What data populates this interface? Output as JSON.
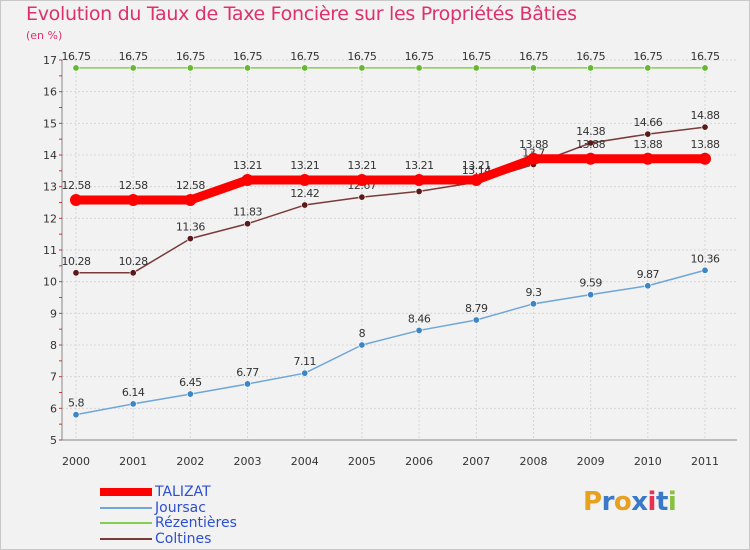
{
  "chart_data": {
    "type": "line",
    "title": "Evolution du Taux de Taxe Foncière sur les Propriétés Bâties",
    "unit_label": "(en %)",
    "x": [
      "2000",
      "2001",
      "2002",
      "2003",
      "2004",
      "2005",
      "2006",
      "2007",
      "2008",
      "2009",
      "2010",
      "2011"
    ],
    "ylim": [
      5,
      17
    ],
    "y_ticks": [
      5,
      6,
      7,
      8,
      9,
      10,
      11,
      12,
      13,
      14,
      15,
      16,
      17
    ],
    "grid": true,
    "legend_position": "bottom-left",
    "series": [
      {
        "name": "Rézentières",
        "color": "#88cc55",
        "marker": "#66b833",
        "values": [
          16.75,
          16.75,
          16.75,
          16.75,
          16.75,
          16.75,
          16.75,
          16.75,
          16.75,
          16.75,
          16.75,
          16.75
        ],
        "labels": [
          "16.75",
          "16.75",
          "16.75",
          "16.75",
          "16.75",
          "16.75",
          "16.75",
          "16.75",
          "16.75",
          "16.75",
          "16.75",
          "16.75"
        ]
      },
      {
        "name": "Joursac",
        "color": "#6ea6d8",
        "marker": "#3d86c6",
        "values": [
          5.8,
          6.14,
          6.45,
          6.77,
          7.11,
          8,
          8.46,
          8.79,
          9.3,
          9.59,
          9.87,
          10.36
        ],
        "labels": [
          "5.8",
          "6.14",
          "6.45",
          "6.77",
          "7.11",
          "8",
          "8.46",
          "8.79",
          "9.3",
          "9.59",
          "9.87",
          "10.36"
        ]
      },
      {
        "name": "Coltines",
        "color": "#7a3a3a",
        "marker": "#5a1a1a",
        "values": [
          10.28,
          10.28,
          11.36,
          11.83,
          12.42,
          12.67,
          12.85,
          13.14,
          13.7,
          14.38,
          14.66,
          14.88
        ],
        "labels": [
          "10.28",
          "10.28",
          "11.36",
          "11.83",
          "12.42",
          "12.67",
          "12.85",
          "13.14",
          "13.7",
          "14.38",
          "14.66",
          "14.88"
        ]
      },
      {
        "name": "TALIZAT",
        "color": "#ff0000",
        "marker": "#ff0000",
        "values": [
          12.58,
          12.58,
          12.58,
          13.21,
          13.21,
          13.21,
          13.21,
          13.21,
          13.88,
          13.88,
          13.88,
          13.88
        ],
        "labels": [
          "12.58",
          "12.58",
          "12.58",
          "13.21",
          "13.21",
          "13.21",
          "13.21",
          "13.21",
          "13.88",
          "13.88",
          "13.88",
          "13.88"
        ]
      }
    ],
    "legend": [
      "TALIZAT",
      "Joursac",
      "Rézentières",
      "Coltines"
    ]
  },
  "logo": {
    "letters": [
      "P",
      "r",
      "o",
      "x",
      "i",
      "t",
      "i"
    ],
    "colors": [
      "#e8a020",
      "#3a78c8",
      "#e8a020",
      "#3a78c8",
      "#e83050",
      "#3a78c8",
      "#88c040"
    ]
  }
}
